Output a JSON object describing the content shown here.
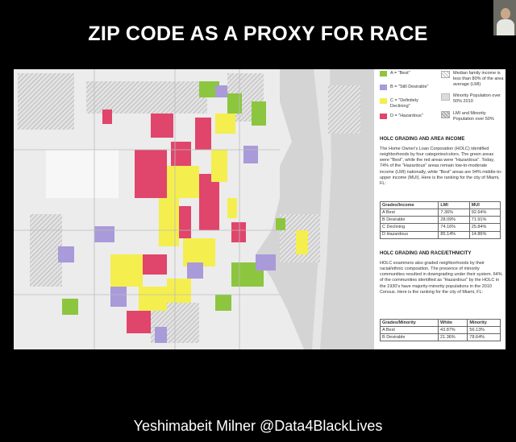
{
  "slide_title": "ZIP CODE AS A PROXY FOR RACE",
  "footer_credit": "Yeshimabeit Milner @Data4BlackLives",
  "legend": {
    "a": "A = \"Best\"",
    "b": "B = \"Still Desirable\"",
    "c": "C = \"Definitely Declining\"",
    "d": "D = \"Hazardous\"",
    "lmi": "Median family income is less than 80% of the area average (LMI)",
    "minority": "Minority Population over 50% 2010",
    "lmi_minority": "LMI and Minority Population over 50%"
  },
  "colors": {
    "a": "#8cc63e",
    "b": "#a99ad9",
    "c": "#f4ee4f",
    "d": "#e0456b",
    "land": "#e9e9e9",
    "water": "#d6d6d6"
  },
  "section1": {
    "heading": "HOLC GRADING AND AREA INCOME",
    "body": "The Home Owner's Loan Corporation (HOLC) identified neighborhoods by four categories/colors. The green areas were \"Best\", while the red areas were \"Hazardous\". Today, 74% of the \"Hazardous\" areas remain low-to-moderate income (LMI) nationally, while \"Best\" areas are 94% middle-to-upper income (MUI). Here is the ranking for the city of Miami, FL:",
    "columns": [
      "Grades/Income",
      "LMI",
      "MUI"
    ],
    "rows": [
      [
        "A Best",
        "7.36%",
        "92.64%"
      ],
      [
        "B Desirable",
        "28.09%",
        "71.91%"
      ],
      [
        "C Declining",
        "74.16%",
        "25.84%"
      ],
      [
        "D Hazardous",
        "85.14%",
        "14.86%"
      ]
    ]
  },
  "section2": {
    "heading": "HOLC GRADING AND RACE/ETHNICITY",
    "body": "HOLC examiners also graded neighborhoods by their racial/ethnic composition. The presence of minority communities resulted in downgrading under their system. 64% of the communities identified as \"Hazardous\" by the HOLC in the 1930's have majority-minority populations in the 2010 Census. Here is the ranking for the city of Miami, FL:",
    "columns": [
      "Grades/Minority",
      "White",
      "Minority"
    ],
    "rows": [
      [
        "A Best",
        "43.87%",
        "56.13%"
      ],
      [
        "B Desirable",
        "21.36%",
        "78.64%"
      ]
    ]
  },
  "icons": {
    "map": "holc-redlining-map",
    "presenter": "presenter-video-thumbnail"
  }
}
